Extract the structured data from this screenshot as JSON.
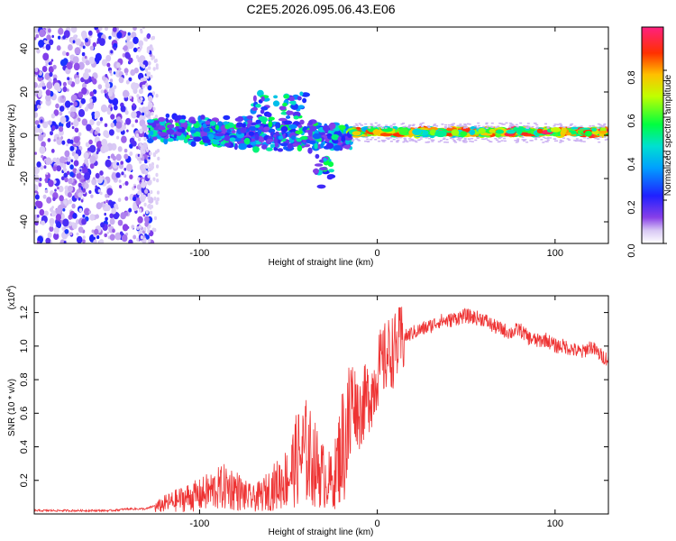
{
  "title": "C2E5.2026.095.06.43.E06",
  "chart_data": [
    {
      "type": "heatmap",
      "name": "spectrogram",
      "xlabel": "Height of straight line (km)",
      "ylabel": "Frequency (Hz)",
      "xlim": [
        -193,
        130
      ],
      "ylim": [
        -50,
        50
      ],
      "xticks": [
        -100,
        0,
        100
      ],
      "yticks": [
        -40,
        -20,
        0,
        20,
        40
      ],
      "colorbar": {
        "label": "Normalized spectral amplitude",
        "range": [
          0,
          1
        ],
        "ticks": [
          "0.0",
          "0.2",
          "0.4",
          "0.6",
          "0.8"
        ]
      }
    },
    {
      "type": "line",
      "name": "snr",
      "xlabel": "Height of straight line (km)",
      "ylabel": "SNR (10 * v/v)",
      "yunit_multiplier": "(x10",
      "yunit_exponent": "4",
      "xlim": [
        -193,
        130
      ],
      "ylim": [
        0,
        1.3
      ],
      "xticks": [
        -100,
        0,
        100
      ],
      "yticks": [
        "0.2",
        "0.4",
        "0.6",
        "0.8",
        "1.0",
        "1.2"
      ],
      "color": "#ee3333",
      "series": [
        {
          "name": "SNR",
          "x": [
            -193,
            -180,
            -170,
            -160,
            -150,
            -140,
            -130,
            -125,
            -120,
            -115,
            -110,
            -105,
            -100,
            -95,
            -90,
            -85,
            -80,
            -75,
            -70,
            -65,
            -60,
            -55,
            -50,
            -45,
            -40,
            -35,
            -30,
            -25,
            -20,
            -18,
            -15,
            -12,
            -10,
            -8,
            -5,
            -2,
            0,
            3,
            6,
            10,
            15,
            20,
            25,
            30,
            35,
            40,
            45,
            50,
            55,
            60,
            65,
            70,
            75,
            80,
            85,
            90,
            95,
            100,
            105,
            110,
            115,
            120,
            125,
            130
          ],
          "y": [
            0.02,
            0.02,
            0.02,
            0.02,
            0.02,
            0.03,
            0.03,
            0.05,
            0.08,
            0.1,
            0.12,
            0.14,
            0.15,
            0.18,
            0.2,
            0.22,
            0.2,
            0.15,
            0.12,
            0.15,
            0.2,
            0.25,
            0.3,
            0.45,
            0.5,
            0.4,
            0.3,
            0.25,
            0.55,
            0.6,
            0.75,
            0.65,
            0.6,
            0.65,
            0.7,
            0.75,
            0.85,
            0.9,
            0.95,
            0.98,
            1.05,
            1.08,
            1.1,
            1.12,
            1.15,
            1.15,
            1.17,
            1.18,
            1.17,
            1.16,
            1.12,
            1.1,
            1.08,
            1.1,
            1.05,
            1.03,
            1.04,
            1.0,
            1.0,
            0.98,
            0.96,
            1.0,
            0.95,
            0.92
          ]
        }
      ]
    }
  ]
}
